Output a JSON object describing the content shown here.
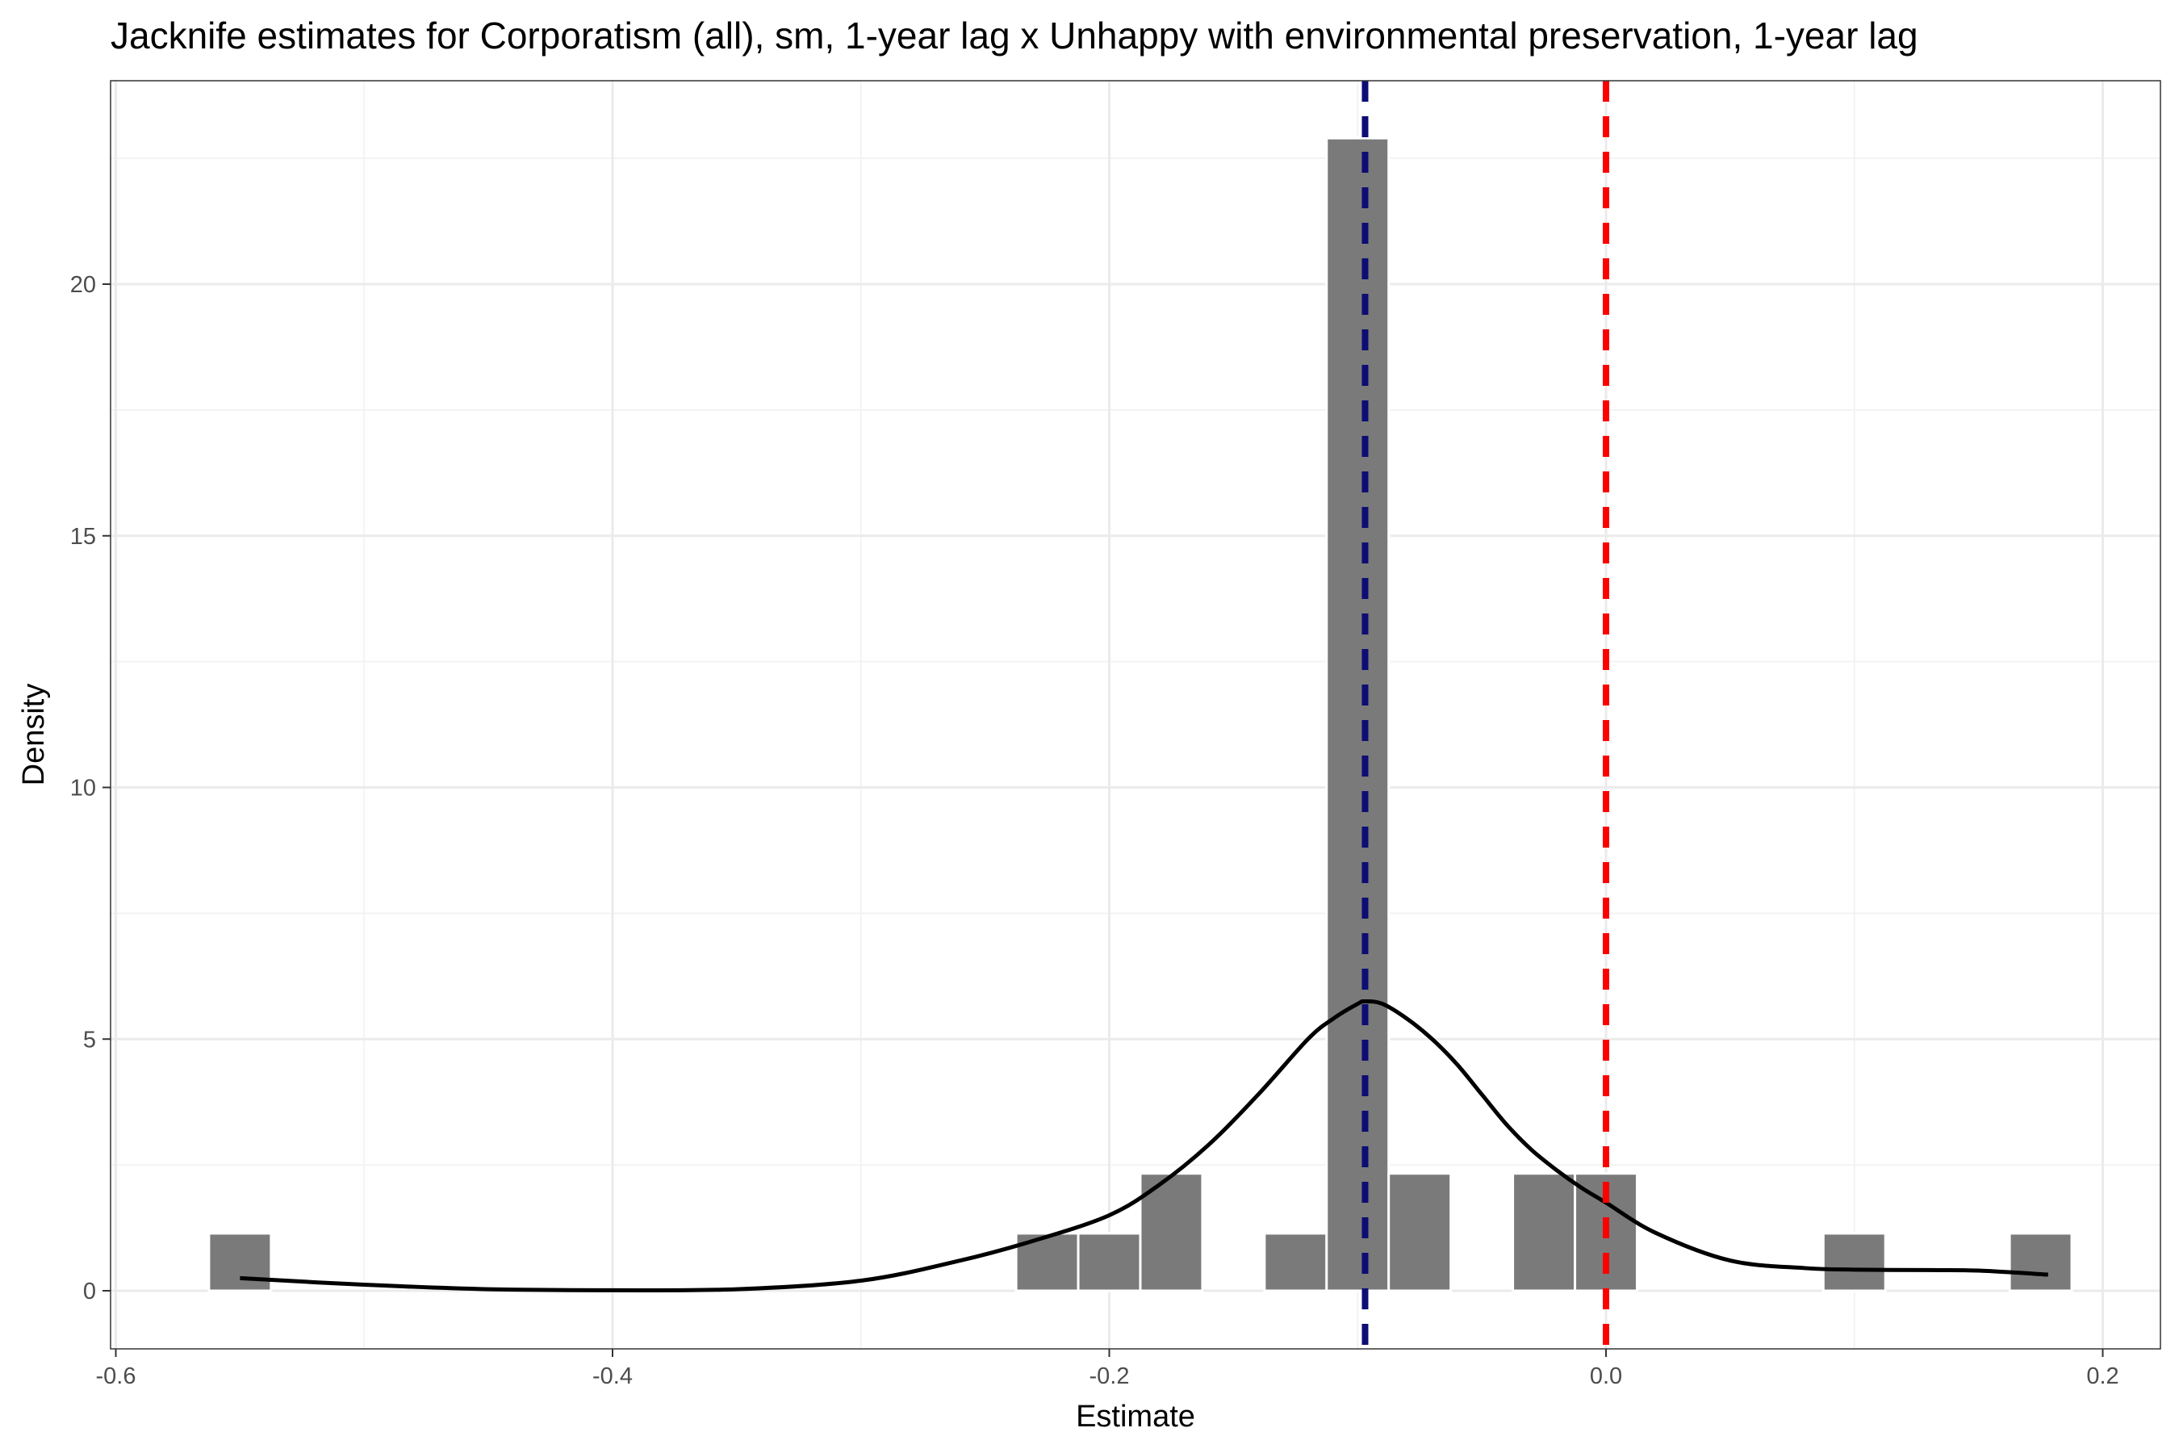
{
  "chart_data": {
    "type": "histogram",
    "title": "Jacknife estimates for Corporatism (all), sm, 1-year lag x Unhappy with environmental preservation, 1-year lag",
    "xlabel": "Estimate",
    "ylabel": "Density",
    "xlim": [
      -0.6,
      0.2
    ],
    "ylim": [
      0,
      23
    ],
    "x_ticks": [
      -0.6,
      -0.4,
      -0.2,
      0.0,
      0.2
    ],
    "x_tick_labels": [
      "-0.6",
      "-0.4",
      "-0.2",
      "0.0",
      "0.2"
    ],
    "y_ticks": [
      0,
      5,
      10,
      15,
      20
    ],
    "y_tick_labels": [
      "0",
      "5",
      "10",
      "15",
      "20"
    ],
    "grid": true,
    "bin_width": 0.025,
    "bins": [
      {
        "x0": -0.5625,
        "x1": -0.5375,
        "density": 1.14
      },
      {
        "x0": -0.2375,
        "x1": -0.2125,
        "density": 1.14
      },
      {
        "x0": -0.2125,
        "x1": -0.1875,
        "density": 1.14
      },
      {
        "x0": -0.1875,
        "x1": -0.1625,
        "density": 2.33
      },
      {
        "x0": -0.1375,
        "x1": -0.1125,
        "density": 1.14
      },
      {
        "x0": -0.1125,
        "x1": -0.0875,
        "density": 22.9
      },
      {
        "x0": -0.0875,
        "x1": -0.0625,
        "density": 2.33
      },
      {
        "x0": -0.0375,
        "x1": -0.0125,
        "density": 2.33
      },
      {
        "x0": -0.0125,
        "x1": 0.0125,
        "density": 2.33
      },
      {
        "x0": 0.0875,
        "x1": 0.1125,
        "density": 1.14
      },
      {
        "x0": 0.1625,
        "x1": 0.1875,
        "density": 1.14
      }
    ],
    "density_curve": {
      "x": [
        -0.55,
        -0.5,
        -0.45,
        -0.4,
        -0.35,
        -0.3,
        -0.26,
        -0.23,
        -0.2,
        -0.18,
        -0.16,
        -0.14,
        -0.12,
        -0.11,
        -0.1,
        -0.097,
        -0.09,
        -0.08,
        -0.07,
        -0.06,
        -0.05,
        -0.04,
        -0.03,
        -0.02,
        -0.01,
        0.0,
        0.02,
        0.05,
        0.08,
        0.1,
        0.13,
        0.15,
        0.178
      ],
      "y": [
        0.25,
        0.12,
        0.03,
        0.01,
        0.03,
        0.2,
        0.6,
        1.0,
        1.5,
        2.1,
        2.9,
        3.9,
        5.0,
        5.4,
        5.7,
        5.75,
        5.7,
        5.4,
        5.0,
        4.5,
        3.9,
        3.3,
        2.8,
        2.4,
        2.05,
        1.75,
        1.15,
        0.6,
        0.45,
        0.42,
        0.41,
        0.4,
        0.32
      ]
    },
    "reference_lines": [
      {
        "x": -0.097,
        "style": "dashed",
        "color": "#0d0d73"
      },
      {
        "x": 0.0,
        "style": "dashed",
        "color": "#ff0000"
      }
    ],
    "colors": {
      "bar_fill": "#7a7a7a",
      "bar_edge": "#ffffff",
      "curve": "#000000",
      "grid_major": "#ebebeb",
      "grid_minor": "#f3f3f3",
      "panel_border": "#333333"
    }
  }
}
